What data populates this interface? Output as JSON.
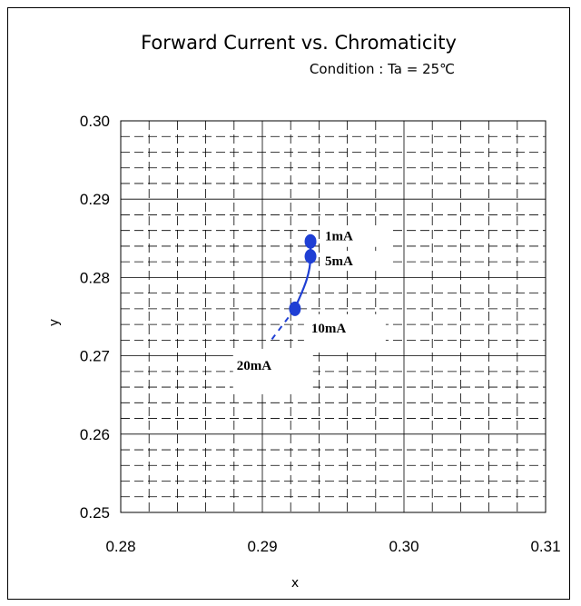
{
  "chart_data": {
    "type": "scatter",
    "title": "Forward Current vs. Chromaticity",
    "subtitle": "Condition : Ta = 25℃",
    "xlabel": "x",
    "ylabel": "y",
    "xlim": [
      0.28,
      0.31
    ],
    "ylim": [
      0.25,
      0.3
    ],
    "x_ticks": [
      "0.28",
      "0.29",
      "0.30",
      "0.31"
    ],
    "y_ticks": [
      "0.30",
      "0.29",
      "0.28",
      "0.27",
      "0.26",
      "0.25"
    ],
    "grid": true,
    "series": [
      {
        "color": "#1f3fd4",
        "points": [
          {
            "label": "1mA",
            "x": 0.2934,
            "y": 0.2846
          },
          {
            "label": "5mA",
            "x": 0.2934,
            "y": 0.2827
          },
          {
            "label": "10mA",
            "x": 0.2923,
            "y": 0.276
          },
          {
            "label": "20mA",
            "x": 0.2905,
            "y": 0.2717
          }
        ]
      }
    ]
  }
}
